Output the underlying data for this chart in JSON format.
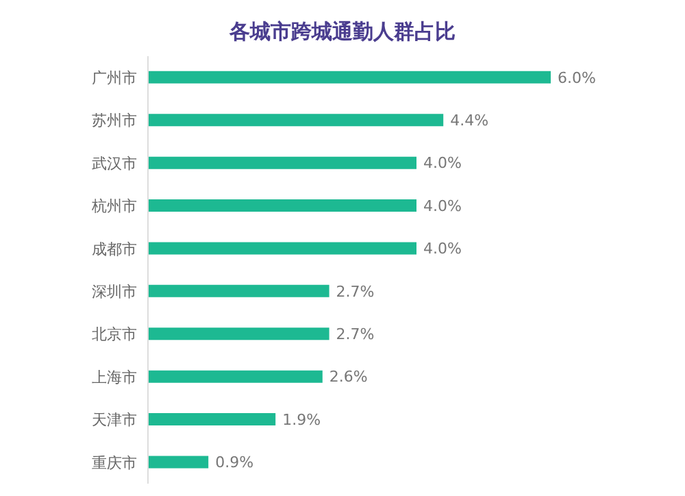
{
  "chart_data": {
    "type": "bar",
    "orientation": "horizontal",
    "title": "各城市跨城通勤人群占比",
    "categories": [
      "广州市",
      "苏州市",
      "武汉市",
      "杭州市",
      "成都市",
      "深圳市",
      "北京市",
      "上海市",
      "天津市",
      "重庆市"
    ],
    "values": [
      6.0,
      4.4,
      4.0,
      4.0,
      4.0,
      2.7,
      2.7,
      2.6,
      1.9,
      0.9
    ],
    "value_labels": [
      "6.0%",
      "4.4%",
      "4.0%",
      "4.0%",
      "4.0%",
      "2.7%",
      "2.7%",
      "2.6%",
      "1.9%",
      "0.9%"
    ],
    "color": "#1db992"
  }
}
